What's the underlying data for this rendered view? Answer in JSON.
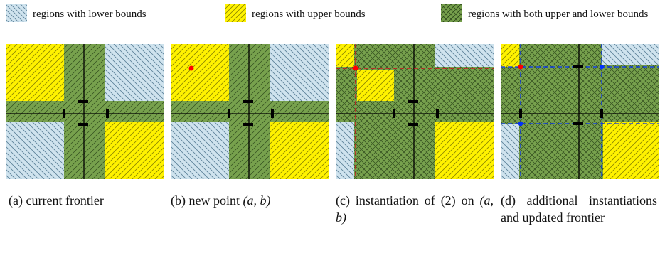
{
  "colors": {
    "lower": "#cfe3ee",
    "lower_hatch": "#5a7f96",
    "upper": "#fff200",
    "upper_hatch": "#8a8400",
    "both": "#77a14d",
    "both_hatch": "#2f4a1c",
    "point_red": "#ff0000",
    "point_blue": "#0030ff"
  },
  "legend": {
    "lower_label": "regions with lower bounds",
    "upper_label": "regions with upper bounds",
    "both_label": "regions with both upper and lower bounds"
  },
  "captions": {
    "a": {
      "prefix": "(a) current frontier",
      "math": ""
    },
    "b": {
      "prefix": "(b) new point ",
      "math": "(a, b)"
    },
    "c": {
      "prefix": "(c) instantiation of (2) on ",
      "math": "(a, b)"
    },
    "d": {
      "prefix": "(d) additional instantiations and updated frontier",
      "math": ""
    }
  }
}
